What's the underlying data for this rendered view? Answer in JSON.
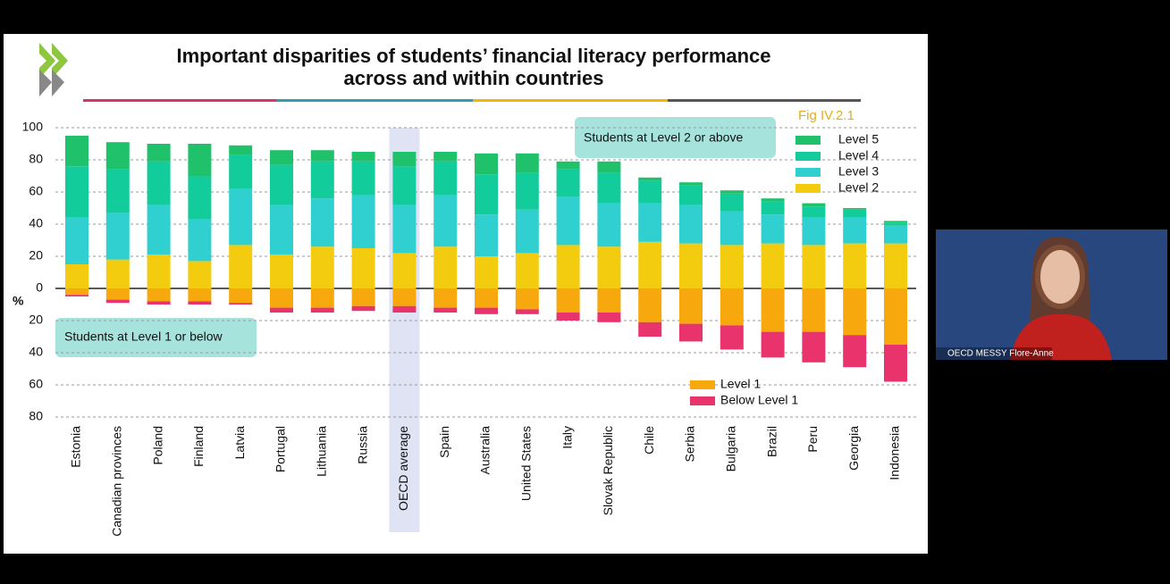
{
  "chart_data": {
    "type": "stacked_bar",
    "title": "Important disparities of students’ financial literacy performance",
    "subtitle": "across and within countries",
    "figure_label": "Fig IV.2.1",
    "y_label": "%",
    "annotations": [
      "Students at Level 2 or above",
      "Students at Level 1 or below"
    ],
    "highlight": "OECD average",
    "categories": [
      "Estonia",
      "Canadian provinces",
      "Poland",
      "Finland",
      "Latvia",
      "Portugal",
      "Lithuania",
      "Russia",
      "OECD average",
      "Spain",
      "Australia",
      "United States",
      "Italy",
      "Slovak Republic",
      "Chile",
      "Serbia",
      "Bulgaria",
      "Brazil",
      "Peru",
      "Georgia",
      "Indonesia"
    ],
    "series": [
      {
        "name": "Level 5",
        "color": "#1fc16b",
        "values": [
          19,
          17,
          11,
          20,
          6,
          9,
          7,
          6,
          9,
          6,
          13,
          12,
          5,
          7,
          2,
          2,
          2,
          2,
          2,
          1,
          1
        ]
      },
      {
        "name": "Level 4",
        "color": "#13cc9c",
        "values": [
          32,
          27,
          27,
          27,
          21,
          25,
          23,
          21,
          24,
          21,
          25,
          23,
          17,
          19,
          14,
          12,
          11,
          8,
          7,
          5,
          2
        ]
      },
      {
        "name": "Level 3",
        "color": "#2fd0cf",
        "values": [
          29,
          29,
          31,
          26,
          35,
          31,
          30,
          33,
          30,
          32,
          26,
          27,
          30,
          27,
          24,
          24,
          21,
          18,
          17,
          16,
          11
        ]
      },
      {
        "name": "Level 2",
        "color": "#f3cc10",
        "values": [
          15,
          18,
          21,
          17,
          27,
          21,
          26,
          25,
          22,
          26,
          20,
          22,
          27,
          26,
          29,
          28,
          27,
          28,
          27,
          28,
          28
        ]
      },
      {
        "name": "Level 1",
        "color": "#f7a80c",
        "values": [
          -4,
          -7,
          -8,
          -8,
          -9,
          -12,
          -12,
          -11,
          -11,
          -12,
          -12,
          -13,
          -15,
          -15,
          -21,
          -22,
          -23,
          -27,
          -27,
          -29,
          -35
        ]
      },
      {
        "name": "Below Level 1",
        "color": "#e8336c",
        "values": [
          -1,
          -2,
          -2,
          -2,
          -1,
          -3,
          -3,
          -3,
          -4,
          -3,
          -4,
          -3,
          -5,
          -6,
          -9,
          -11,
          -15,
          -16,
          -19,
          -20,
          -23
        ]
      }
    ],
    "ylim": [
      -80,
      100
    ],
    "yticks": [
      100,
      80,
      60,
      40,
      20,
      0,
      {
        "value": -20,
        "label": "20"
      },
      {
        "value": -40,
        "label": "40"
      },
      {
        "value": -60,
        "label": "60"
      },
      {
        "value": -80,
        "label": "80"
      }
    ],
    "grid": true
  },
  "video": {
    "participant": "OECD MESSY Flore-Anne"
  }
}
